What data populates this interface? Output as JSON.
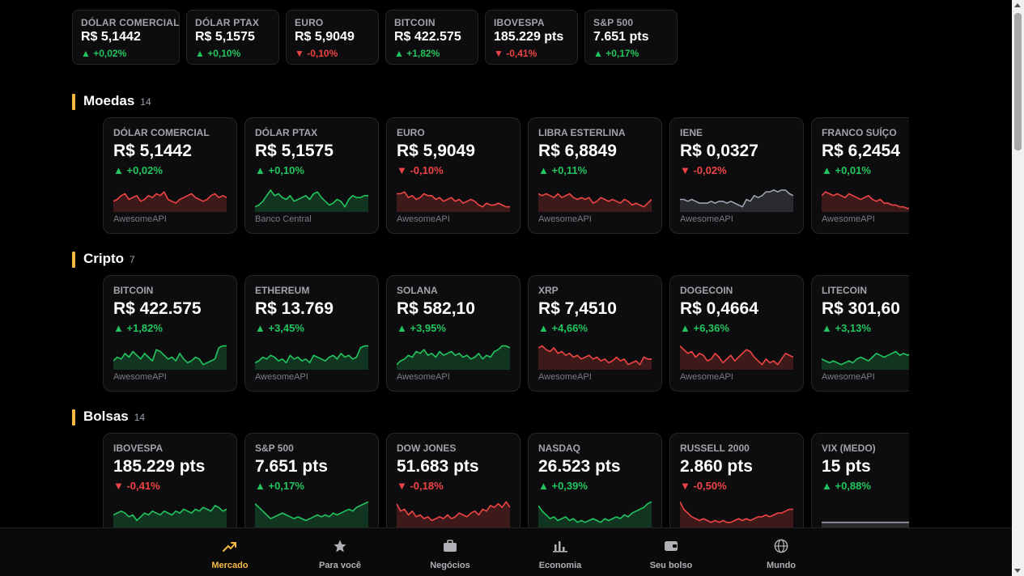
{
  "ticker": [
    {
      "label": "DÓLAR COMERCIAL",
      "value": "R$ 5,1442",
      "change": "▲ +0,02%",
      "dir": "up"
    },
    {
      "label": "DÓLAR PTAX",
      "value": "R$ 5,1575",
      "change": "▲ +0,10%",
      "dir": "up"
    },
    {
      "label": "EURO",
      "value": "R$ 5,9049",
      "change": "▼ -0,10%",
      "dir": "down"
    },
    {
      "label": "BITCOIN",
      "value": "R$ 422.575",
      "change": "▲ +1,82%",
      "dir": "up"
    },
    {
      "label": "IBOVESPA",
      "value": "185.229 pts",
      "change": "▼ -0,41%",
      "dir": "down"
    },
    {
      "label": "S&P 500",
      "value": "7.651 pts",
      "change": "▲ +0,17%",
      "dir": "up"
    }
  ],
  "sections": [
    {
      "title": "Moedas",
      "count": "14",
      "cards": [
        {
          "label": "DÓLAR COMERCIAL",
          "value": "R$ 5,1442",
          "change": "▲ +0,02%",
          "dir": "up",
          "source": "AwesomeAPI",
          "spark_color": "red",
          "spark": [
            9,
            8,
            6,
            5,
            8,
            7,
            6,
            9,
            8,
            6,
            7,
            5,
            6,
            4,
            8,
            9,
            10,
            8,
            7,
            6,
            5,
            7,
            8,
            9,
            8,
            6,
            5,
            7,
            6,
            7
          ]
        },
        {
          "label": "DÓLAR PTAX",
          "value": "R$ 5,1575",
          "change": "▲ +0,10%",
          "dir": "up",
          "source": "Banco Central",
          "spark_color": "green",
          "spark": [
            12,
            11,
            9,
            6,
            3,
            6,
            5,
            7,
            8,
            6,
            9,
            8,
            7,
            6,
            8,
            5,
            4,
            7,
            9,
            11,
            10,
            8,
            9,
            12,
            8,
            6,
            7,
            7,
            6,
            6
          ]
        },
        {
          "label": "EURO",
          "value": "R$ 5,9049",
          "change": "▼ -0,10%",
          "dir": "down",
          "source": "AwesomeAPI",
          "spark_color": "red",
          "spark": [
            5,
            5,
            4,
            7,
            6,
            8,
            7,
            5,
            6,
            6,
            8,
            7,
            9,
            8,
            7,
            9,
            8,
            10,
            9,
            8,
            9,
            11,
            12,
            10,
            11,
            11,
            10,
            11,
            12,
            12
          ]
        },
        {
          "label": "LIBRA ESTERLINA",
          "value": "R$ 6,8849",
          "change": "▲ +0,11%",
          "dir": "up",
          "source": "AwesomeAPI",
          "spark_color": "red",
          "spark": [
            5,
            6,
            5,
            6,
            7,
            5,
            7,
            6,
            5,
            7,
            8,
            7,
            8,
            7,
            10,
            9,
            7,
            8,
            9,
            8,
            9,
            10,
            8,
            9,
            11,
            10,
            11,
            12,
            10,
            8
          ]
        },
        {
          "label": "IENE",
          "value": "R$ 0,0327",
          "change": "▼ -0,02%",
          "dir": "down",
          "source": "AwesomeAPI",
          "spark_color": "gray",
          "spark": [
            8,
            8,
            9,
            8,
            9,
            10,
            10,
            10,
            9,
            10,
            9,
            9,
            10,
            9,
            10,
            11,
            12,
            8,
            9,
            6,
            7,
            6,
            4,
            4,
            3,
            4,
            3,
            3,
            5,
            6
          ]
        },
        {
          "label": "FRANCO SUÍÇO",
          "value": "R$ 6,2454",
          "change": "▲ +0,01%",
          "dir": "up",
          "source": "AwesomeAPI",
          "spark_color": "red",
          "spark": [
            6,
            4,
            5,
            6,
            5,
            6,
            7,
            5,
            6,
            7,
            8,
            7,
            6,
            8,
            9,
            8,
            10,
            10,
            11,
            11,
            12,
            12,
            13,
            12,
            12,
            12,
            12,
            12,
            12,
            12
          ]
        }
      ]
    },
    {
      "title": "Cripto",
      "count": "7",
      "cards": [
        {
          "label": "BITCOIN",
          "value": "R$ 422.575",
          "change": "▲ +1,82%",
          "dir": "up",
          "source": "AwesomeAPI",
          "spark_color": "green",
          "spark": [
            10,
            8,
            9,
            6,
            8,
            5,
            7,
            9,
            6,
            8,
            10,
            4,
            5,
            7,
            9,
            8,
            10,
            6,
            9,
            11,
            10,
            8,
            9,
            12,
            11,
            10,
            9,
            3,
            2,
            2
          ]
        },
        {
          "label": "ETHEREUM",
          "value": "R$ 13.769",
          "change": "▲ +3,45%",
          "dir": "up",
          "source": "AwesomeAPI",
          "spark_color": "green",
          "spark": [
            11,
            10,
            8,
            9,
            7,
            8,
            10,
            9,
            11,
            7,
            9,
            8,
            10,
            9,
            11,
            7,
            8,
            9,
            10,
            8,
            7,
            9,
            6,
            8,
            7,
            9,
            8,
            3,
            2,
            2
          ]
        },
        {
          "label": "SOLANA",
          "value": "R$ 582,10",
          "change": "▲ +3,95%",
          "dir": "up",
          "source": "AwesomeAPI",
          "spark_color": "green",
          "spark": [
            12,
            10,
            9,
            7,
            8,
            5,
            6,
            4,
            7,
            6,
            8,
            5,
            7,
            6,
            5,
            7,
            6,
            8,
            7,
            9,
            8,
            6,
            9,
            7,
            8,
            5,
            4,
            2,
            2,
            3
          ]
        },
        {
          "label": "XRP",
          "value": "R$ 7,4510",
          "change": "▲ +4,66%",
          "dir": "up",
          "source": "AwesomeAPI",
          "spark_color": "red",
          "spark": [
            3,
            2,
            4,
            5,
            3,
            6,
            5,
            7,
            6,
            8,
            7,
            9,
            8,
            7,
            9,
            8,
            10,
            9,
            11,
            10,
            8,
            10,
            9,
            12,
            11,
            10,
            12,
            8,
            9,
            9
          ]
        },
        {
          "label": "DOGECOIN",
          "value": "R$ 0,4664",
          "change": "▲ +6,36%",
          "dir": "up",
          "source": "AwesomeAPI",
          "spark_color": "red",
          "spark": [
            2,
            4,
            6,
            5,
            8,
            6,
            7,
            10,
            9,
            6,
            8,
            11,
            9,
            7,
            10,
            8,
            6,
            4,
            5,
            8,
            10,
            12,
            9,
            11,
            10,
            12,
            9,
            6,
            7,
            8
          ]
        },
        {
          "label": "LITECOIN",
          "value": "R$ 301,60",
          "change": "▲ +3,13%",
          "dir": "up",
          "source": "AwesomeAPI",
          "spark_color": "green",
          "spark": [
            9,
            10,
            11,
            10,
            11,
            12,
            11,
            10,
            11,
            9,
            8,
            9,
            10,
            8,
            6,
            7,
            8,
            7,
            6,
            5,
            7,
            6,
            7,
            6,
            6,
            6,
            6,
            6,
            6,
            6
          ]
        }
      ]
    },
    {
      "title": "Bolsas",
      "count": "14",
      "cards": [
        {
          "label": "IBOVESPA",
          "value": "185.229 pts",
          "change": "▼ -0,41%",
          "dir": "down",
          "source": "",
          "spark_color": "green",
          "spark": [
            8,
            7,
            6,
            7,
            9,
            8,
            11,
            9,
            7,
            8,
            6,
            7,
            8,
            6,
            7,
            8,
            6,
            7,
            5,
            6,
            7,
            5,
            6,
            4,
            5,
            6,
            3,
            4,
            6,
            5
          ]
        },
        {
          "label": "S&P 500",
          "value": "7.651 pts",
          "change": "▲ +0,17%",
          "dir": "up",
          "source": "",
          "spark_color": "green",
          "spark": [
            2,
            4,
            6,
            8,
            10,
            9,
            8,
            7,
            8,
            9,
            10,
            9,
            10,
            11,
            10,
            9,
            8,
            9,
            8,
            9,
            7,
            8,
            7,
            6,
            5,
            6,
            4,
            3,
            2,
            1
          ]
        },
        {
          "label": "DOW JONES",
          "value": "51.683 pts",
          "change": "▼ -0,18%",
          "dir": "down",
          "source": "",
          "spark_color": "red",
          "spark": [
            2,
            6,
            5,
            8,
            6,
            9,
            8,
            10,
            9,
            11,
            10,
            9,
            10,
            8,
            10,
            9,
            7,
            8,
            9,
            7,
            6,
            8,
            5,
            6,
            3,
            4,
            2,
            4,
            1,
            4
          ]
        },
        {
          "label": "NASDAQ",
          "value": "26.523 pts",
          "change": "▲ +0,39%",
          "dir": "up",
          "source": "",
          "spark_color": "green",
          "spark": [
            3,
            6,
            8,
            10,
            9,
            11,
            10,
            9,
            11,
            10,
            12,
            11,
            12,
            11,
            10,
            11,
            12,
            10,
            11,
            10,
            9,
            10,
            8,
            9,
            7,
            6,
            5,
            4,
            2,
            1
          ]
        },
        {
          "label": "RUSSELL 2000",
          "value": "2.860 pts",
          "change": "▼ -0,50%",
          "dir": "down",
          "source": "",
          "spark_color": "red",
          "spark": [
            1,
            5,
            7,
            9,
            10,
            11,
            10,
            11,
            12,
            11,
            12,
            11,
            12,
            12,
            11,
            10,
            11,
            10,
            11,
            10,
            9,
            9,
            8,
            9,
            8,
            7,
            7,
            6,
            5,
            5
          ]
        },
        {
          "label": "VIX (MEDO)",
          "value": "15 pts",
          "change": "▲ +0,88%",
          "dir": "up",
          "source": "",
          "spark_color": "gray",
          "spark": [
            12,
            12,
            12,
            12,
            12,
            12,
            12,
            12,
            12,
            12,
            12,
            12,
            12,
            12,
            12,
            12,
            12,
            12,
            12,
            12,
            12,
            12,
            12,
            12,
            12,
            12,
            12,
            12,
            12,
            12
          ]
        }
      ]
    }
  ],
  "nav": [
    {
      "label": "Mercado",
      "icon": "trending-up-icon",
      "active": true
    },
    {
      "label": "Para você",
      "icon": "star-icon",
      "active": false
    },
    {
      "label": "Negócios",
      "icon": "briefcase-icon",
      "active": false
    },
    {
      "label": "Economia",
      "icon": "bar-chart-icon",
      "active": false
    },
    {
      "label": "Seu bolso",
      "icon": "wallet-icon",
      "active": false
    },
    {
      "label": "Mundo",
      "icon": "globe-icon",
      "active": false
    }
  ],
  "colors": {
    "accent": "#f5b942",
    "up": "#22c55e",
    "down": "#ef4444",
    "flat": "#9ca3af"
  }
}
